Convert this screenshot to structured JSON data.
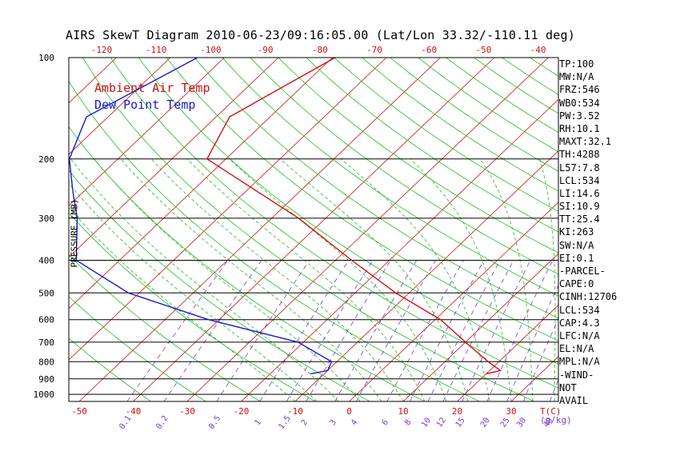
{
  "title": "AIRS SkewT Diagram 2010-06-23/09:16:05.00 (Lat/Lon 33.32/-110.11 deg)",
  "legend": {
    "air": "Ambient Air Temp",
    "dew": "Dew Point Temp"
  },
  "colors": {
    "air": "#cc1111",
    "dew": "#1a1acc",
    "dry_adiabat": "#22bb22",
    "isotherm": "#cc1111",
    "mixing_ratio": "#7a3ccc",
    "moist_adiabat": "#22bb22",
    "isobar": "#000000"
  },
  "indices": [
    "TP:100",
    "MW:N/A",
    "FRZ:546",
    "WB0:534",
    "PW:3.52",
    "RH:10.1",
    "MAXT:32.1",
    "TH:4288",
    "L57:7.8",
    "LCL:534",
    "LI:14.6",
    "SI:10.9",
    "TT:25.4",
    "KI:263",
    "SW:N/A",
    "EI:0.1",
    "-PARCEL-",
    "CAPE:0",
    "CINH:12706",
    "LCL:534",
    "CAP:4.3",
    "LFC:N/A",
    "EL:N/A",
    "MPL:N/A",
    "-WIND-",
    " NOT",
    "AVAIL"
  ],
  "chart_data": {
    "type": "line",
    "title": "AIRS SkewT Diagram 2010-06-23/09:16:05.00 (Lat/Lon 33.32/-110.11 deg)",
    "ylabel": "PRESSURE (MB)",
    "xlabel": "T(C)",
    "mixing_label": "(g/kg)",
    "y_scale": "log",
    "ylim": [
      1050,
      100
    ],
    "xlim": [
      -52,
      40
    ],
    "pressure_ticks": [
      100,
      200,
      300,
      400,
      500,
      600,
      700,
      800,
      900,
      1000
    ],
    "bottom_temp_ticks": [
      -50,
      -40,
      -30,
      -20,
      -10,
      0,
      10,
      20,
      30
    ],
    "top_temp_ticks": [
      -120,
      -110,
      -100,
      -90,
      -80,
      -70,
      -60,
      -50,
      -40
    ],
    "mixing_ratio_labels": [
      "0.1",
      "0.2",
      "0.5",
      "1",
      "1.5",
      "2",
      "3",
      "4",
      "6",
      "8",
      "10",
      "12",
      "15",
      "20",
      "25",
      "30",
      "40"
    ],
    "mixing_ratio_values": [
      0.1,
      0.2,
      0.5,
      1,
      1.5,
      2,
      3,
      4,
      6,
      8,
      10,
      12,
      15,
      20,
      25,
      30,
      40
    ],
    "series": [
      {
        "name": "Ambient Air Temp",
        "pressure": [
          100,
          150,
          200,
          300,
          400,
          500,
          600,
          700,
          800,
          850,
          870
        ],
        "temperature": [
          -69.5,
          -77.5,
          -73.5,
          -45,
          -27,
          -12.5,
          1,
          10,
          18,
          22,
          20
        ]
      },
      {
        "name": "Dew Point Temp",
        "pressure": [
          100,
          150,
          200,
          250,
          300,
          400,
          500,
          600,
          700,
          800,
          850,
          870
        ],
        "temperature": [
          -95,
          -104,
          -99,
          -92,
          -86,
          -78,
          -62,
          -42,
          -21,
          -11,
          -10,
          -12.5
        ]
      }
    ]
  }
}
